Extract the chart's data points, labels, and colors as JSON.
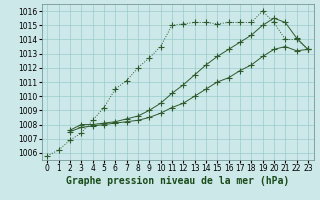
{
  "title": "Graphe pression niveau de la mer (hPa)",
  "bg_color": "#cce8e8",
  "grid_color": "#99cccc",
  "line_color": "#2d5a2d",
  "x_ticks": [
    0,
    1,
    2,
    3,
    4,
    5,
    6,
    7,
    8,
    9,
    10,
    11,
    12,
    13,
    14,
    15,
    16,
    17,
    18,
    19,
    20,
    21,
    22,
    23
  ],
  "ylim": [
    1005.5,
    1016.5
  ],
  "yticks": [
    1006,
    1007,
    1008,
    1009,
    1010,
    1011,
    1012,
    1013,
    1014,
    1015,
    1016
  ],
  "line1_x": [
    0,
    1,
    2,
    3,
    4,
    5,
    6,
    7,
    8,
    9,
    10,
    11,
    12,
    13,
    14,
    15,
    16,
    17,
    18,
    19,
    20,
    21,
    22,
    23
  ],
  "line1_y": [
    1005.8,
    1006.2,
    1006.9,
    1007.4,
    1008.3,
    1009.2,
    1010.5,
    1011.1,
    1012.0,
    1012.7,
    1013.5,
    1015.0,
    1015.1,
    1015.2,
    1015.2,
    1015.1,
    1015.2,
    1015.2,
    1015.2,
    1016.0,
    1015.2,
    1014.0,
    1014.0,
    1013.3
  ],
  "line2_x": [
    2,
    3,
    4,
    5,
    6,
    7,
    8,
    9,
    10,
    11,
    12,
    13,
    14,
    15,
    16,
    17,
    18,
    19,
    20,
    21,
    22,
    23
  ],
  "line2_y": [
    1007.5,
    1007.8,
    1007.9,
    1008.0,
    1008.1,
    1008.2,
    1008.3,
    1008.5,
    1008.8,
    1009.2,
    1009.5,
    1010.0,
    1010.5,
    1011.0,
    1011.3,
    1011.8,
    1012.2,
    1012.8,
    1013.3,
    1013.5,
    1013.2,
    1013.3
  ],
  "line3_x": [
    2,
    3,
    4,
    5,
    6,
    7,
    8,
    9,
    10,
    11,
    12,
    13,
    14,
    15,
    16,
    17,
    18,
    19,
    20,
    21,
    22,
    23
  ],
  "line3_y": [
    1007.6,
    1008.0,
    1008.0,
    1008.1,
    1008.2,
    1008.4,
    1008.6,
    1009.0,
    1009.5,
    1010.2,
    1010.8,
    1011.5,
    1012.2,
    1012.8,
    1013.3,
    1013.8,
    1014.3,
    1015.0,
    1015.5,
    1015.2,
    1014.1,
    1013.3
  ],
  "xlabel_fontsize": 7,
  "tick_fontsize": 5.5,
  "marker_size": 2.0
}
